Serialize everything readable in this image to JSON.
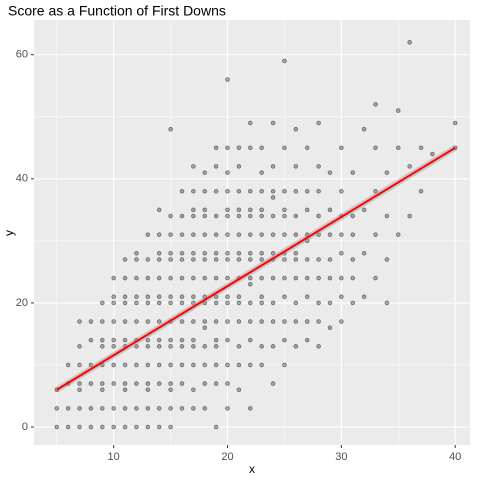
{
  "chart_data": {
    "type": "scatter",
    "title": "Score as a Function of First Downs",
    "x_label": "x",
    "y_label": "y",
    "xlim": [
      3.0,
      41.3
    ],
    "ylim": [
      -2.9,
      65.6
    ],
    "xticks": [
      10,
      20,
      30,
      40
    ],
    "yticks": [
      0,
      20,
      40,
      60
    ],
    "x_minor_grid": [
      5,
      15,
      25,
      35
    ],
    "y_minor_grid": [
      10,
      30,
      50
    ],
    "grid": true,
    "series": [
      {
        "color": "#000000",
        "x": [
          5,
          5,
          5,
          6,
          6,
          6,
          6,
          7,
          7,
          7,
          7,
          7,
          7,
          7,
          8,
          8,
          8,
          8,
          8,
          8,
          9,
          9,
          9,
          9,
          9,
          9,
          9,
          9,
          9,
          10,
          10,
          10,
          10,
          10,
          10,
          10,
          10,
          10,
          10,
          11,
          11,
          11,
          11,
          11,
          11,
          11,
          11,
          11,
          11,
          11,
          11,
          12,
          12,
          12,
          12,
          12,
          12,
          12,
          12,
          12,
          12,
          12,
          12,
          13,
          13,
          13,
          13,
          13,
          13,
          13,
          13,
          13,
          13,
          13,
          13,
          13,
          14,
          14,
          14,
          14,
          14,
          14,
          14,
          14,
          14,
          14,
          14,
          14,
          14,
          14,
          15,
          15,
          15,
          15,
          15,
          15,
          15,
          15,
          15,
          15,
          15,
          15,
          15,
          15,
          15,
          15,
          16,
          16,
          16,
          16,
          16,
          16,
          16,
          16,
          16,
          16,
          16,
          16,
          16,
          16,
          17,
          17,
          17,
          17,
          17,
          17,
          17,
          17,
          17,
          17,
          17,
          17,
          17,
          17,
          17,
          17,
          18,
          18,
          18,
          18,
          18,
          18,
          18,
          18,
          18,
          18,
          18,
          18,
          18,
          18,
          18,
          18,
          19,
          19,
          19,
          19,
          19,
          19,
          19,
          19,
          19,
          19,
          19,
          19,
          19,
          19,
          19,
          19,
          20,
          20,
          20,
          20,
          20,
          20,
          20,
          20,
          20,
          20,
          20,
          20,
          20,
          20,
          20,
          20,
          20,
          21,
          21,
          21,
          21,
          21,
          21,
          21,
          21,
          21,
          21,
          21,
          21,
          21,
          21,
          21,
          22,
          22,
          22,
          22,
          22,
          22,
          22,
          22,
          22,
          22,
          22,
          22,
          22,
          22,
          22,
          23,
          23,
          23,
          23,
          23,
          23,
          23,
          23,
          23,
          23,
          23,
          23,
          23,
          23,
          24,
          24,
          24,
          24,
          24,
          24,
          24,
          24,
          24,
          24,
          24,
          24,
          24,
          25,
          25,
          25,
          25,
          25,
          25,
          25,
          25,
          25,
          25,
          25,
          25,
          25,
          26,
          26,
          26,
          26,
          26,
          26,
          26,
          26,
          26,
          26,
          26,
          27,
          27,
          27,
          27,
          27,
          27,
          27,
          27,
          27,
          27,
          28,
          28,
          28,
          28,
          28,
          28,
          28,
          28,
          28,
          28,
          29,
          29,
          29,
          29,
          29,
          29,
          29,
          30,
          30,
          30,
          30,
          30,
          30,
          30,
          30,
          31,
          31,
          31,
          31,
          31,
          31,
          32,
          32,
          32,
          32,
          33,
          33,
          33,
          33,
          33,
          34,
          34,
          34,
          34,
          35,
          35,
          35,
          36,
          36,
          36,
          37,
          37,
          38,
          40,
          40
        ],
        "values": [
          0,
          3,
          6,
          0,
          3,
          7,
          10,
          0,
          3,
          6,
          7,
          10,
          13,
          17,
          0,
          3,
          7,
          10,
          14,
          17,
          0,
          3,
          6,
          7,
          10,
          13,
          14,
          17,
          20,
          0,
          3,
          7,
          10,
          13,
          14,
          17,
          20,
          21,
          24,
          0,
          3,
          6,
          7,
          10,
          13,
          14,
          17,
          20,
          21,
          24,
          27,
          0,
          3,
          7,
          10,
          13,
          14,
          17,
          20,
          21,
          24,
          27,
          28,
          0,
          3,
          6,
          7,
          10,
          13,
          14,
          17,
          20,
          21,
          24,
          27,
          31,
          0,
          3,
          7,
          10,
          13,
          14,
          17,
          20,
          21,
          24,
          27,
          28,
          31,
          35,
          0,
          3,
          6,
          7,
          10,
          13,
          14,
          17,
          20,
          21,
          24,
          27,
          28,
          31,
          34,
          48,
          3,
          7,
          10,
          13,
          14,
          17,
          20,
          21,
          24,
          27,
          28,
          31,
          34,
          38,
          3,
          6,
          10,
          13,
          14,
          17,
          20,
          21,
          24,
          27,
          28,
          31,
          34,
          35,
          38,
          42,
          3,
          7,
          10,
          13,
          16,
          17,
          20,
          21,
          24,
          27,
          28,
          31,
          34,
          35,
          38,
          41,
          0,
          7,
          10,
          13,
          14,
          17,
          20,
          21,
          24,
          27,
          28,
          31,
          34,
          38,
          42,
          45,
          3,
          7,
          10,
          14,
          17,
          20,
          21,
          24,
          27,
          28,
          31,
          34,
          35,
          38,
          41,
          45,
          56,
          6,
          10,
          13,
          17,
          20,
          21,
          24,
          27,
          28,
          31,
          34,
          35,
          38,
          42,
          45,
          3,
          10,
          14,
          17,
          20,
          23,
          24,
          27,
          28,
          31,
          34,
          35,
          38,
          45,
          49,
          10,
          13,
          17,
          20,
          21,
          24,
          27,
          28,
          31,
          34,
          35,
          38,
          41,
          45,
          7,
          13,
          17,
          20,
          24,
          27,
          28,
          31,
          34,
          37,
          38,
          42,
          49,
          10,
          14,
          17,
          21,
          24,
          27,
          28,
          31,
          34,
          35,
          38,
          45,
          59,
          13,
          17,
          20,
          24,
          27,
          28,
          31,
          34,
          38,
          42,
          48,
          14,
          17,
          21,
          24,
          27,
          30,
          31,
          35,
          38,
          45,
          13,
          17,
          20,
          24,
          27,
          31,
          34,
          38,
          42,
          49,
          16,
          20,
          24,
          27,
          31,
          35,
          41,
          17,
          21,
          24,
          28,
          31,
          34,
          38,
          45,
          20,
          24,
          27,
          31,
          34,
          41,
          21,
          28,
          35,
          48,
          24,
          31,
          38,
          45,
          52,
          20,
          27,
          34,
          41,
          31,
          45,
          51,
          34,
          42,
          62,
          38,
          45,
          44,
          45,
          49
        ]
      }
    ],
    "trend": {
      "color": "#ff0000",
      "x": [
        5,
        40
      ],
      "values": [
        6,
        45
      ]
    }
  }
}
